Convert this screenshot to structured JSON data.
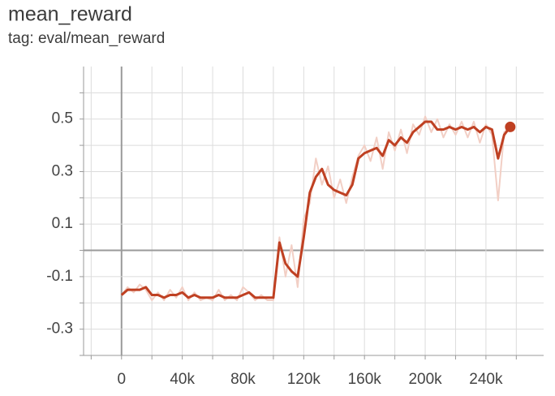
{
  "chart_data": {
    "type": "line",
    "title": "mean_reward",
    "subtitle": "tag: eval/mean_reward",
    "x": [
      0,
      4000,
      8000,
      12000,
      16000,
      20000,
      24000,
      28000,
      32000,
      36000,
      40000,
      44000,
      48000,
      52000,
      56000,
      60000,
      64000,
      68000,
      72000,
      76000,
      80000,
      84000,
      88000,
      92000,
      96000,
      100000,
      104000,
      108000,
      112000,
      116000,
      120000,
      124000,
      128000,
      132000,
      136000,
      140000,
      144000,
      148000,
      152000,
      156000,
      160000,
      164000,
      168000,
      172000,
      176000,
      180000,
      184000,
      188000,
      192000,
      196000,
      200000,
      204000,
      208000,
      212000,
      216000,
      220000,
      224000,
      228000,
      232000,
      236000,
      240000,
      244000,
      248000,
      252000,
      256000
    ],
    "series": [
      {
        "color": "#f2cfc5",
        "values": [
          -0.17,
          -0.14,
          -0.16,
          -0.13,
          -0.15,
          -0.19,
          -0.16,
          -0.19,
          -0.15,
          -0.18,
          -0.14,
          -0.19,
          -0.16,
          -0.19,
          -0.18,
          -0.19,
          -0.15,
          -0.19,
          -0.17,
          -0.19,
          -0.14,
          -0.16,
          -0.19,
          -0.17,
          -0.19,
          -0.19,
          0.05,
          -0.1,
          0.02,
          -0.14,
          0.12,
          0.18,
          0.35,
          0.25,
          0.32,
          0.2,
          0.27,
          0.18,
          0.28,
          0.36,
          0.4,
          0.34,
          0.43,
          0.31,
          0.45,
          0.38,
          0.46,
          0.37,
          0.48,
          0.44,
          0.51,
          0.45,
          0.5,
          0.43,
          0.48,
          0.44,
          0.49,
          0.43,
          0.49,
          0.41,
          0.48,
          0.44,
          0.19,
          0.45,
          0.47
        ]
      },
      {
        "color": "#bf4022",
        "values": [
          -0.17,
          -0.15,
          -0.15,
          -0.15,
          -0.14,
          -0.17,
          -0.17,
          -0.18,
          -0.17,
          -0.17,
          -0.16,
          -0.18,
          -0.17,
          -0.18,
          -0.18,
          -0.18,
          -0.17,
          -0.18,
          -0.18,
          -0.18,
          -0.17,
          -0.16,
          -0.18,
          -0.18,
          -0.18,
          -0.18,
          0.03,
          -0.05,
          -0.08,
          -0.1,
          0.05,
          0.22,
          0.28,
          0.31,
          0.25,
          0.23,
          0.22,
          0.21,
          0.25,
          0.35,
          0.37,
          0.38,
          0.39,
          0.36,
          0.42,
          0.4,
          0.43,
          0.41,
          0.45,
          0.47,
          0.49,
          0.49,
          0.46,
          0.46,
          0.47,
          0.46,
          0.47,
          0.46,
          0.47,
          0.45,
          0.47,
          0.46,
          0.35,
          0.44,
          0.47
        ]
      }
    ],
    "xlim": [
      -25000,
      278000
    ],
    "ylim": [
      -0.4,
      0.7
    ],
    "xticks": [
      {
        "value": 0,
        "label": "0"
      },
      {
        "value": 40000,
        "label": "40k"
      },
      {
        "value": 80000,
        "label": "80k"
      },
      {
        "value": 120000,
        "label": "120k"
      },
      {
        "value": 160000,
        "label": "160k"
      },
      {
        "value": 200000,
        "label": "200k"
      },
      {
        "value": 240000,
        "label": "240k"
      }
    ],
    "xminor": [
      -20000,
      20000,
      60000,
      100000,
      140000,
      180000,
      220000,
      260000
    ],
    "yticks": [
      -0.3,
      -0.1,
      0.1,
      0.3,
      0.5
    ],
    "yminor": [
      -0.4,
      -0.2,
      0,
      0.2,
      0.4,
      0.6
    ],
    "grid": true
  }
}
